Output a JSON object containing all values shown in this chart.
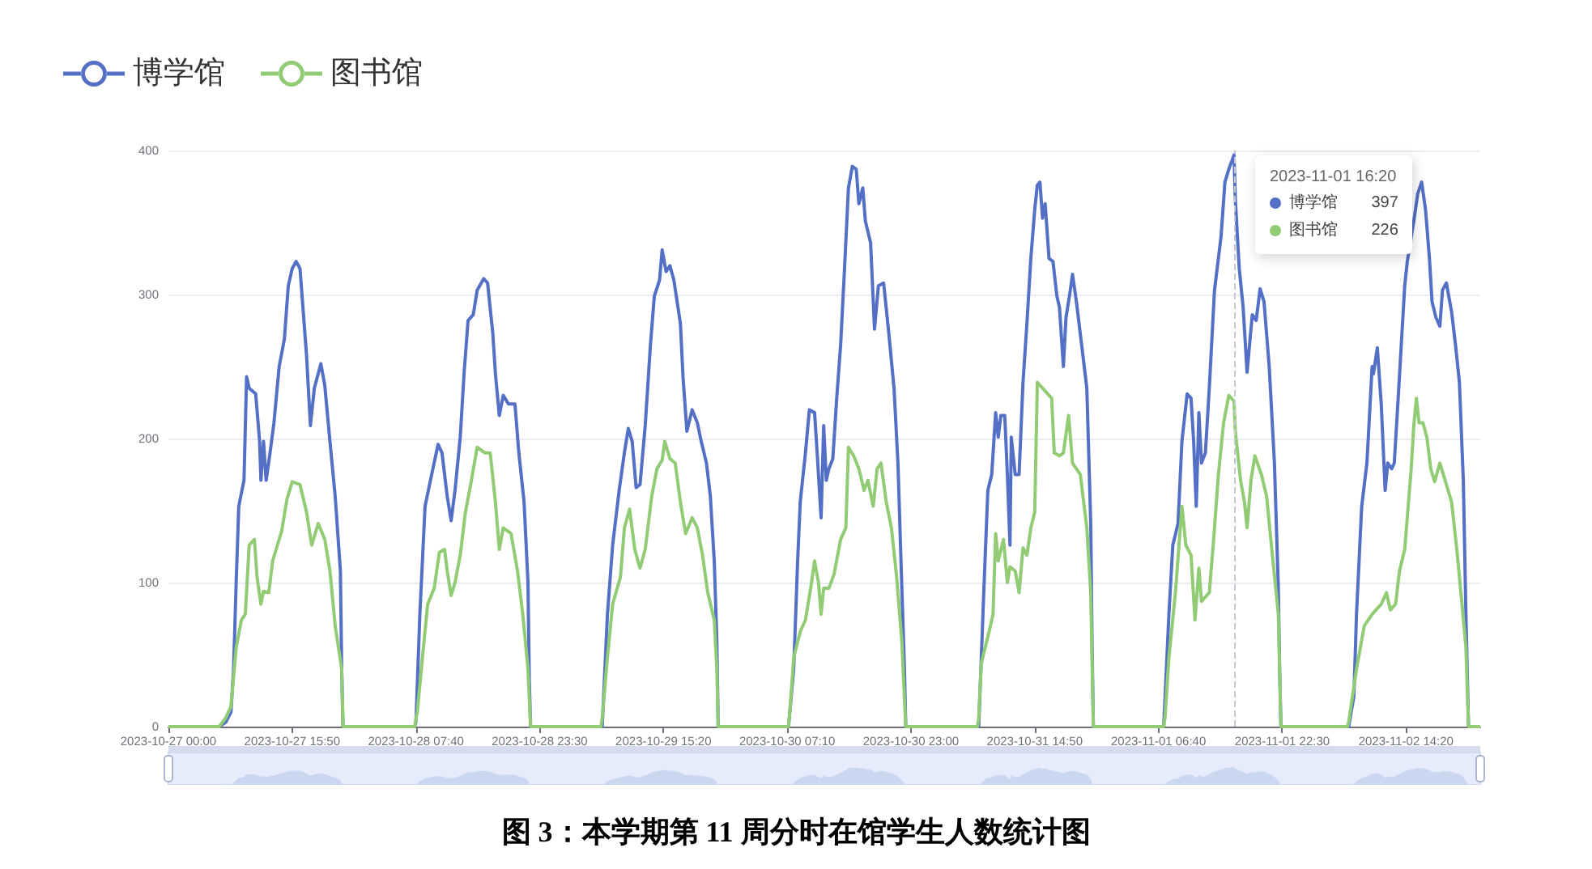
{
  "chart_data": {
    "type": "line",
    "title": "图 3：本学期第 11 周分时在馆学生人数统计图",
    "legend": "top left",
    "grid": "y",
    "xlim": [
      "2023-10-27T00:00",
      "2023-11-02T23:50"
    ],
    "xticks": [
      {
        "value": "2023-10-27T00:00",
        "label": "2023-10-27 00:00"
      },
      {
        "value": "2023-10-27T15:50",
        "label": "2023-10-27 15:50"
      },
      {
        "value": "2023-10-28T07:40",
        "label": "2023-10-28 07:40"
      },
      {
        "value": "2023-10-28T23:30",
        "label": "2023-10-28 23:30"
      },
      {
        "value": "2023-10-29T15:20",
        "label": "2023-10-29 15:20"
      },
      {
        "value": "2023-10-30T07:10",
        "label": "2023-10-30 07:10"
      },
      {
        "value": "2023-10-30T23:00",
        "label": "2023-10-30 23:00"
      },
      {
        "value": "2023-10-31T14:50",
        "label": "2023-10-31 14:50"
      },
      {
        "value": "2023-11-01T06:40",
        "label": "2023-11-01 06:40"
      },
      {
        "value": "2023-11-01T22:30",
        "label": "2023-11-01 22:30"
      },
      {
        "value": "2023-11-02T14:20",
        "label": "2023-11-02 14:20"
      }
    ],
    "ylim": [
      0,
      400
    ],
    "yticks": [
      0,
      100,
      200,
      300,
      400
    ],
    "ref_lines": [
      {
        "axis": "x",
        "value": "2023-11-01T16:20",
        "color": "#c3c7d0",
        "line_style": "dashed"
      }
    ],
    "annotations": [
      {
        "text": "2023-11-01 16:20",
        "x": "2023-11-01T16:20",
        "y": 397
      },
      "博学馆 397",
      "图书馆 226"
    ],
    "series": [
      {
        "name": "博学馆",
        "color": "#5470c6",
        "x": [
          "2023-10-27T00:00",
          "2023-10-27T06:30",
          "2023-10-27T07:20",
          "2023-10-27T08:00",
          "2023-10-27T08:20",
          "2023-10-27T08:40",
          "2023-10-27T09:00",
          "2023-10-27T09:40",
          "2023-10-27T10:00",
          "2023-10-27T10:20",
          "2023-10-27T11:10",
          "2023-10-27T11:40",
          "2023-10-27T11:50",
          "2023-10-27T12:10",
          "2023-10-27T12:30",
          "2023-10-27T13:00",
          "2023-10-27T13:30",
          "2023-10-27T14:10",
          "2023-10-27T14:50",
          "2023-10-27T15:20",
          "2023-10-27T15:50",
          "2023-10-27T16:20",
          "2023-10-27T16:50",
          "2023-10-27T17:40",
          "2023-10-27T18:10",
          "2023-10-27T18:40",
          "2023-10-27T19:30",
          "2023-10-27T20:00",
          "2023-10-27T20:40",
          "2023-10-27T21:20",
          "2023-10-27T22:00",
          "2023-10-27T22:10",
          "2023-10-27T22:20",
          "2023-10-28T07:30",
          "2023-10-28T07:40",
          "2023-10-28T08:10",
          "2023-10-28T08:50",
          "2023-10-28T09:50",
          "2023-10-28T10:30",
          "2023-10-28T11:00",
          "2023-10-28T11:40",
          "2023-10-28T12:10",
          "2023-10-28T12:40",
          "2023-10-28T13:20",
          "2023-10-28T13:50",
          "2023-10-28T14:20",
          "2023-10-28T15:00",
          "2023-10-28T15:30",
          "2023-10-28T16:20",
          "2023-10-28T16:50",
          "2023-10-28T17:30",
          "2023-10-28T17:50",
          "2023-10-28T18:20",
          "2023-10-28T18:50",
          "2023-10-28T19:30",
          "2023-10-28T20:20",
          "2023-10-28T20:50",
          "2023-10-28T21:30",
          "2023-10-28T22:00",
          "2023-10-28T22:10",
          "2023-10-28T22:20",
          "2023-10-29T07:30",
          "2023-10-29T08:10",
          "2023-10-29T08:50",
          "2023-10-29T09:40",
          "2023-10-29T10:20",
          "2023-10-29T10:50",
          "2023-10-29T11:20",
          "2023-10-29T11:50",
          "2023-10-29T12:20",
          "2023-10-29T13:00",
          "2023-10-29T13:40",
          "2023-10-29T14:10",
          "2023-10-29T14:50",
          "2023-10-29T15:10",
          "2023-10-29T15:40",
          "2023-10-29T16:10",
          "2023-10-29T16:40",
          "2023-10-29T17:30",
          "2023-10-29T17:50",
          "2023-10-29T18:20",
          "2023-10-29T19:00",
          "2023-10-29T19:40",
          "2023-10-29T20:10",
          "2023-10-29T20:50",
          "2023-10-29T21:20",
          "2023-10-29T21:50",
          "2023-10-29T22:10",
          "2023-10-29T22:20",
          "2023-10-30T07:20",
          "2023-10-30T08:00",
          "2023-10-30T08:30",
          "2023-10-30T08:50",
          "2023-10-30T09:30",
          "2023-10-30T10:00",
          "2023-10-30T10:40",
          "2023-10-30T11:00",
          "2023-10-30T11:30",
          "2023-10-30T11:50",
          "2023-10-30T12:10",
          "2023-10-30T12:30",
          "2023-10-30T13:00",
          "2023-10-30T13:30",
          "2023-10-30T14:00",
          "2023-10-30T14:30",
          "2023-10-30T15:00",
          "2023-10-30T15:30",
          "2023-10-30T16:00",
          "2023-10-30T16:20",
          "2023-10-30T16:50",
          "2023-10-30T17:10",
          "2023-10-30T17:50",
          "2023-10-30T18:20",
          "2023-10-30T18:50",
          "2023-10-30T19:30",
          "2023-10-30T20:10",
          "2023-10-30T20:50",
          "2023-10-30T21:20",
          "2023-10-30T21:50",
          "2023-10-30T22:10",
          "2023-10-30T22:20",
          "2023-10-31T07:40",
          "2023-10-31T08:20",
          "2023-10-31T08:50",
          "2023-10-31T09:20",
          "2023-10-31T09:50",
          "2023-10-31T10:10",
          "2023-10-31T10:30",
          "2023-10-31T11:00",
          "2023-10-31T11:20",
          "2023-10-31T11:40",
          "2023-10-31T11:50",
          "2023-10-31T12:20",
          "2023-10-31T12:50",
          "2023-10-31T13:20",
          "2023-10-31T13:50",
          "2023-10-31T14:20",
          "2023-10-31T14:50",
          "2023-10-31T15:10",
          "2023-10-31T15:30",
          "2023-10-31T15:50",
          "2023-10-31T16:10",
          "2023-10-31T16:40",
          "2023-10-31T17:10",
          "2023-10-31T17:40",
          "2023-10-31T18:00",
          "2023-10-31T18:30",
          "2023-10-31T18:50",
          "2023-10-31T19:20",
          "2023-10-31T19:40",
          "2023-10-31T20:10",
          "2023-10-31T20:50",
          "2023-10-31T21:30",
          "2023-10-31T22:00",
          "2023-10-31T22:10",
          "2023-10-31T22:20",
          "2023-11-01T07:20",
          "2023-11-01T08:00",
          "2023-11-01T08:30",
          "2023-11-01T09:10",
          "2023-11-01T09:40",
          "2023-11-01T10:20",
          "2023-11-01T10:50",
          "2023-11-01T11:10",
          "2023-11-01T11:30",
          "2023-11-01T11:50",
          "2023-11-01T12:10",
          "2023-11-01T12:40",
          "2023-11-01T13:10",
          "2023-11-01T13:50",
          "2023-11-01T14:40",
          "2023-11-01T15:10",
          "2023-11-01T15:40",
          "2023-11-01T16:20",
          "2023-11-01T16:30",
          "2023-11-01T17:00",
          "2023-11-01T17:30",
          "2023-11-01T18:00",
          "2023-11-01T18:40",
          "2023-11-01T19:10",
          "2023-11-01T19:40",
          "2023-11-01T20:10",
          "2023-11-01T20:50",
          "2023-11-01T21:30",
          "2023-11-01T22:00",
          "2023-11-01T22:10",
          "2023-11-01T22:20",
          "2023-11-02T07:00",
          "2023-11-02T07:40",
          "2023-11-02T08:00",
          "2023-11-02T08:40",
          "2023-11-02T09:20",
          "2023-11-02T10:00",
          "2023-11-02T10:10",
          "2023-11-02T10:40",
          "2023-11-02T11:10",
          "2023-11-02T11:40",
          "2023-11-02T12:00",
          "2023-11-02T12:30",
          "2023-11-02T12:50",
          "2023-11-02T13:20",
          "2023-11-02T14:10",
          "2023-11-02T14:30",
          "2023-11-02T15:20",
          "2023-11-02T15:50",
          "2023-11-02T16:20",
          "2023-11-02T16:50",
          "2023-11-02T17:20",
          "2023-11-02T17:40",
          "2023-11-02T18:10",
          "2023-11-02T18:40",
          "2023-11-02T19:00",
          "2023-11-02T19:30",
          "2023-11-02T20:10",
          "2023-11-02T20:40",
          "2023-11-02T21:10",
          "2023-11-02T21:40",
          "2023-11-02T22:00",
          "2023-11-02T22:20",
          "2023-11-02T23:50"
        ],
        "values": [
          0,
          0,
          3,
          10,
          40,
          100,
          153,
          171,
          243,
          235,
          231,
          198,
          171,
          198,
          171,
          190,
          211,
          250,
          269,
          306,
          318,
          323,
          318,
          258,
          209,
          235,
          252,
          237,
          198,
          160,
          108,
          40,
          0,
          0,
          3,
          78,
          153,
          179,
          196,
          190,
          160,
          143,
          164,
          201,
          246,
          282,
          286,
          303,
          311,
          308,
          273,
          245,
          216,
          230,
          224,
          224,
          190,
          156,
          100,
          33,
          0,
          0,
          78,
          126,
          164,
          190,
          207,
          198,
          166,
          168,
          209,
          265,
          299,
          310,
          331,
          316,
          320,
          310,
          280,
          243,
          205,
          220,
          211,
          198,
          183,
          160,
          115,
          59,
          0,
          0,
          40,
          115,
          156,
          190,
          220,
          218,
          190,
          145,
          209,
          171,
          179,
          186,
          228,
          265,
          318,
          374,
          389,
          387,
          363,
          374,
          351,
          336,
          276,
          306,
          308,
          273,
          235,
          183,
          96,
          40,
          0,
          0,
          96,
          164,
          175,
          218,
          201,
          216,
          216,
          175,
          126,
          201,
          175,
          175,
          239,
          280,
          325,
          359,
          376,
          378,
          353,
          363,
          325,
          323,
          299,
          291,
          250,
          284,
          301,
          314,
          295,
          265,
          235,
          141,
          59,
          0,
          0,
          78,
          126,
          141,
          198,
          231,
          228,
          198,
          153,
          218,
          183,
          190,
          235,
          303,
          340,
          378,
          387,
          397,
          366,
          318,
          291,
          246,
          286,
          282,
          304,
          295,
          250,
          183,
          96,
          40,
          0,
          0,
          21,
          78,
          153,
          183,
          250,
          245,
          263,
          224,
          164,
          183,
          179,
          183,
          228,
          306,
          323,
          351,
          370,
          378,
          359,
          325,
          295,
          284,
          278,
          303,
          308,
          288,
          265,
          239,
          171,
          78,
          0,
          0
        ]
      },
      {
        "name": "图书馆",
        "color": "#91cc75",
        "x": [
          "2023-10-27T00:00",
          "2023-10-27T06:30",
          "2023-10-27T07:20",
          "2023-10-27T08:00",
          "2023-10-27T08:40",
          "2023-10-27T09:20",
          "2023-10-27T09:50",
          "2023-10-27T10:20",
          "2023-10-27T11:00",
          "2023-10-27T11:20",
          "2023-10-27T11:50",
          "2023-10-27T12:10",
          "2023-10-27T12:50",
          "2023-10-27T13:20",
          "2023-10-27T13:50",
          "2023-10-27T14:30",
          "2023-10-27T15:10",
          "2023-10-27T15:50",
          "2023-10-27T16:50",
          "2023-10-27T17:40",
          "2023-10-27T18:20",
          "2023-10-27T19:10",
          "2023-10-27T20:00",
          "2023-10-27T20:40",
          "2023-10-27T21:20",
          "2023-10-27T22:10",
          "2023-10-27T22:20",
          "2023-10-28T07:30",
          "2023-10-28T07:50",
          "2023-10-28T08:30",
          "2023-10-28T09:10",
          "2023-10-28T10:00",
          "2023-10-28T10:40",
          "2023-10-28T11:20",
          "2023-10-28T11:40",
          "2023-10-28T12:10",
          "2023-10-28T12:40",
          "2023-10-28T13:20",
          "2023-10-28T14:00",
          "2023-10-28T14:40",
          "2023-10-28T15:30",
          "2023-10-28T16:30",
          "2023-10-28T17:10",
          "2023-10-28T17:50",
          "2023-10-28T18:20",
          "2023-10-28T18:50",
          "2023-10-28T19:50",
          "2023-10-28T20:40",
          "2023-10-28T21:20",
          "2023-10-28T22:00",
          "2023-10-28T22:20",
          "2023-10-29T07:20",
          "2023-10-29T07:30",
          "2023-10-29T08:10",
          "2023-10-29T08:50",
          "2023-10-29T09:50",
          "2023-10-29T10:20",
          "2023-10-29T11:00",
          "2023-10-29T11:40",
          "2023-10-29T12:20",
          "2023-10-29T13:00",
          "2023-10-29T13:50",
          "2023-10-29T14:30",
          "2023-10-29T15:10",
          "2023-10-29T15:30",
          "2023-10-29T16:10",
          "2023-10-29T16:50",
          "2023-10-29T17:30",
          "2023-10-29T18:10",
          "2023-10-29T19:00",
          "2023-10-29T19:40",
          "2023-10-29T20:20",
          "2023-10-29T21:00",
          "2023-10-29T21:50",
          "2023-10-29T22:10",
          "2023-10-29T22:20",
          "2023-10-30T07:20",
          "2023-10-30T07:30",
          "2023-10-30T08:00",
          "2023-10-30T08:50",
          "2023-10-30T09:30",
          "2023-10-30T10:10",
          "2023-10-30T10:40",
          "2023-10-30T11:10",
          "2023-10-30T11:30",
          "2023-10-30T11:50",
          "2023-10-30T12:30",
          "2023-10-30T13:10",
          "2023-10-30T14:00",
          "2023-10-30T14:40",
          "2023-10-30T15:00",
          "2023-10-30T15:40",
          "2023-10-30T16:20",
          "2023-10-30T17:00",
          "2023-10-30T17:30",
          "2023-10-30T18:10",
          "2023-10-30T18:40",
          "2023-10-30T19:10",
          "2023-10-30T19:50",
          "2023-10-30T20:30",
          "2023-10-30T21:10",
          "2023-10-30T21:50",
          "2023-10-30T22:20",
          "2023-10-31T07:30",
          "2023-10-31T07:40",
          "2023-10-31T08:00",
          "2023-10-31T09:00",
          "2023-10-31T09:30",
          "2023-10-31T09:50",
          "2023-10-31T10:10",
          "2023-10-31T10:50",
          "2023-10-31T11:20",
          "2023-10-31T11:40",
          "2023-10-31T12:20",
          "2023-10-31T12:50",
          "2023-10-31T13:20",
          "2023-10-31T13:50",
          "2023-10-31T14:20",
          "2023-10-31T14:50",
          "2023-10-31T15:10",
          "2023-10-31T15:50",
          "2023-10-31T16:30",
          "2023-10-31T17:00",
          "2023-10-31T17:20",
          "2023-10-31T18:00",
          "2023-10-31T18:30",
          "2023-10-31T19:10",
          "2023-10-31T19:40",
          "2023-10-31T20:40",
          "2023-10-31T21:30",
          "2023-10-31T22:00",
          "2023-10-31T22:20",
          "2023-11-01T07:20",
          "2023-11-01T07:30",
          "2023-11-01T08:00",
          "2023-11-01T08:50",
          "2023-11-01T09:40",
          "2023-11-01T10:10",
          "2023-11-01T10:50",
          "2023-11-01T11:20",
          "2023-11-01T11:50",
          "2023-11-01T12:10",
          "2023-11-01T13:10",
          "2023-11-01T13:40",
          "2023-11-01T14:20",
          "2023-11-01T15:00",
          "2023-11-01T15:40",
          "2023-11-01T16:20",
          "2023-11-01T16:30",
          "2023-11-01T17:10",
          "2023-11-01T17:40",
          "2023-11-01T18:00",
          "2023-11-01T18:30",
          "2023-11-01T19:00",
          "2023-11-01T19:50",
          "2023-11-01T20:30",
          "2023-11-01T21:10",
          "2023-11-01T22:00",
          "2023-11-01T22:20",
          "2023-11-02T06:50",
          "2023-11-02T07:00",
          "2023-11-02T08:00",
          "2023-11-02T09:00",
          "2023-11-02T10:00",
          "2023-11-02T11:10",
          "2023-11-02T11:50",
          "2023-11-02T12:20",
          "2023-11-02T13:00",
          "2023-11-02T13:30",
          "2023-11-02T14:10",
          "2023-11-02T15:00",
          "2023-11-02T15:20",
          "2023-11-02T15:40",
          "2023-11-02T16:00",
          "2023-11-02T16:30",
          "2023-11-02T17:00",
          "2023-11-02T17:30",
          "2023-11-02T18:00",
          "2023-11-02T18:40",
          "2023-11-02T19:20",
          "2023-11-02T20:10",
          "2023-11-02T20:50",
          "2023-11-02T21:30",
          "2023-11-02T22:00",
          "2023-11-02T22:20",
          "2023-11-02T23:50"
        ],
        "values": [
          0,
          0,
          6,
          14,
          55,
          74,
          78,
          126,
          130,
          104,
          85,
          94,
          93,
          115,
          124,
          136,
          158,
          170,
          168,
          149,
          126,
          141,
          130,
          108,
          70,
          40,
          0,
          0,
          10,
          48,
          85,
          96,
          121,
          123,
          108,
          91,
          100,
          119,
          149,
          168,
          194,
          190,
          190,
          156,
          123,
          138,
          134,
          108,
          78,
          40,
          0,
          0,
          6,
          48,
          85,
          104,
          138,
          151,
          123,
          110,
          123,
          160,
          179,
          185,
          198,
          186,
          183,
          156,
          134,
          145,
          138,
          119,
          93,
          74,
          40,
          0,
          0,
          10,
          48,
          66,
          74,
          96,
          115,
          100,
          78,
          96,
          96,
          106,
          130,
          138,
          194,
          188,
          179,
          164,
          171,
          153,
          179,
          183,
          156,
          138,
          104,
          59,
          0,
          0,
          6,
          44,
          66,
          78,
          134,
          115,
          130,
          100,
          111,
          108,
          93,
          124,
          119,
          138,
          149,
          239,
          235,
          231,
          228,
          190,
          188,
          190,
          216,
          183,
          175,
          138,
          93,
          0,
          0,
          6,
          48,
          93,
          153,
          126,
          119,
          74,
          110,
          87,
          93,
          126,
          175,
          211,
          230,
          226,
          205,
          171,
          156,
          138,
          171,
          188,
          175,
          160,
          123,
          78,
          0,
          0,
          3,
          40,
          70,
          78,
          85,
          93,
          81,
          85,
          108,
          123,
          179,
          209,
          228,
          211,
          211,
          201,
          179,
          170,
          183,
          171,
          156,
          123,
          85,
          55,
          0,
          0
        ]
      }
    ]
  }
}
